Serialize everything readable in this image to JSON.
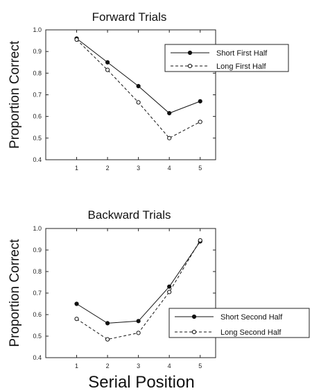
{
  "figure": {
    "xlabel": "Serial Position"
  },
  "chart_data": [
    {
      "type": "line",
      "title": "Forward Trials",
      "ylabel": "Proportion Correct",
      "x": [
        1,
        2,
        3,
        4,
        5
      ],
      "xlim": [
        0,
        5.5
      ],
      "ylim": [
        0.4,
        1.0
      ],
      "yticks": [
        "0.4",
        "0.5",
        "0.6",
        "0.7",
        "0.8",
        "0.9",
        "1.0"
      ],
      "xticks": [
        "1",
        "2",
        "3",
        "4",
        "5"
      ],
      "legend_position": "top-right",
      "grid": false,
      "series": [
        {
          "name": "Short First Half",
          "style": "solid",
          "marker": "filled-circle",
          "values": [
            0.96,
            0.85,
            0.74,
            0.615,
            0.67
          ]
        },
        {
          "name": "Long First Half",
          "style": "dashed",
          "marker": "open-circle",
          "values": [
            0.955,
            0.815,
            0.665,
            0.5,
            0.575
          ]
        }
      ]
    },
    {
      "type": "line",
      "title": "Backward Trials",
      "ylabel": "Proportion Correct",
      "x": [
        1,
        2,
        3,
        4,
        5
      ],
      "xlim": [
        0,
        5.5
      ],
      "ylim": [
        0.4,
        1.0
      ],
      "yticks": [
        "0.4",
        "0.5",
        "0.6",
        "0.7",
        "0.8",
        "0.9",
        "1.0"
      ],
      "xticks": [
        "1",
        "2",
        "3",
        "4",
        "5"
      ],
      "legend_position": "bottom-right",
      "grid": false,
      "series": [
        {
          "name": "Short Second Half",
          "style": "solid",
          "marker": "filled-circle",
          "values": [
            0.65,
            0.56,
            0.57,
            0.73,
            0.94
          ]
        },
        {
          "name": "Long Second Half",
          "style": "dashed",
          "marker": "open-circle",
          "values": [
            0.58,
            0.485,
            0.515,
            0.705,
            0.945
          ]
        }
      ]
    }
  ]
}
